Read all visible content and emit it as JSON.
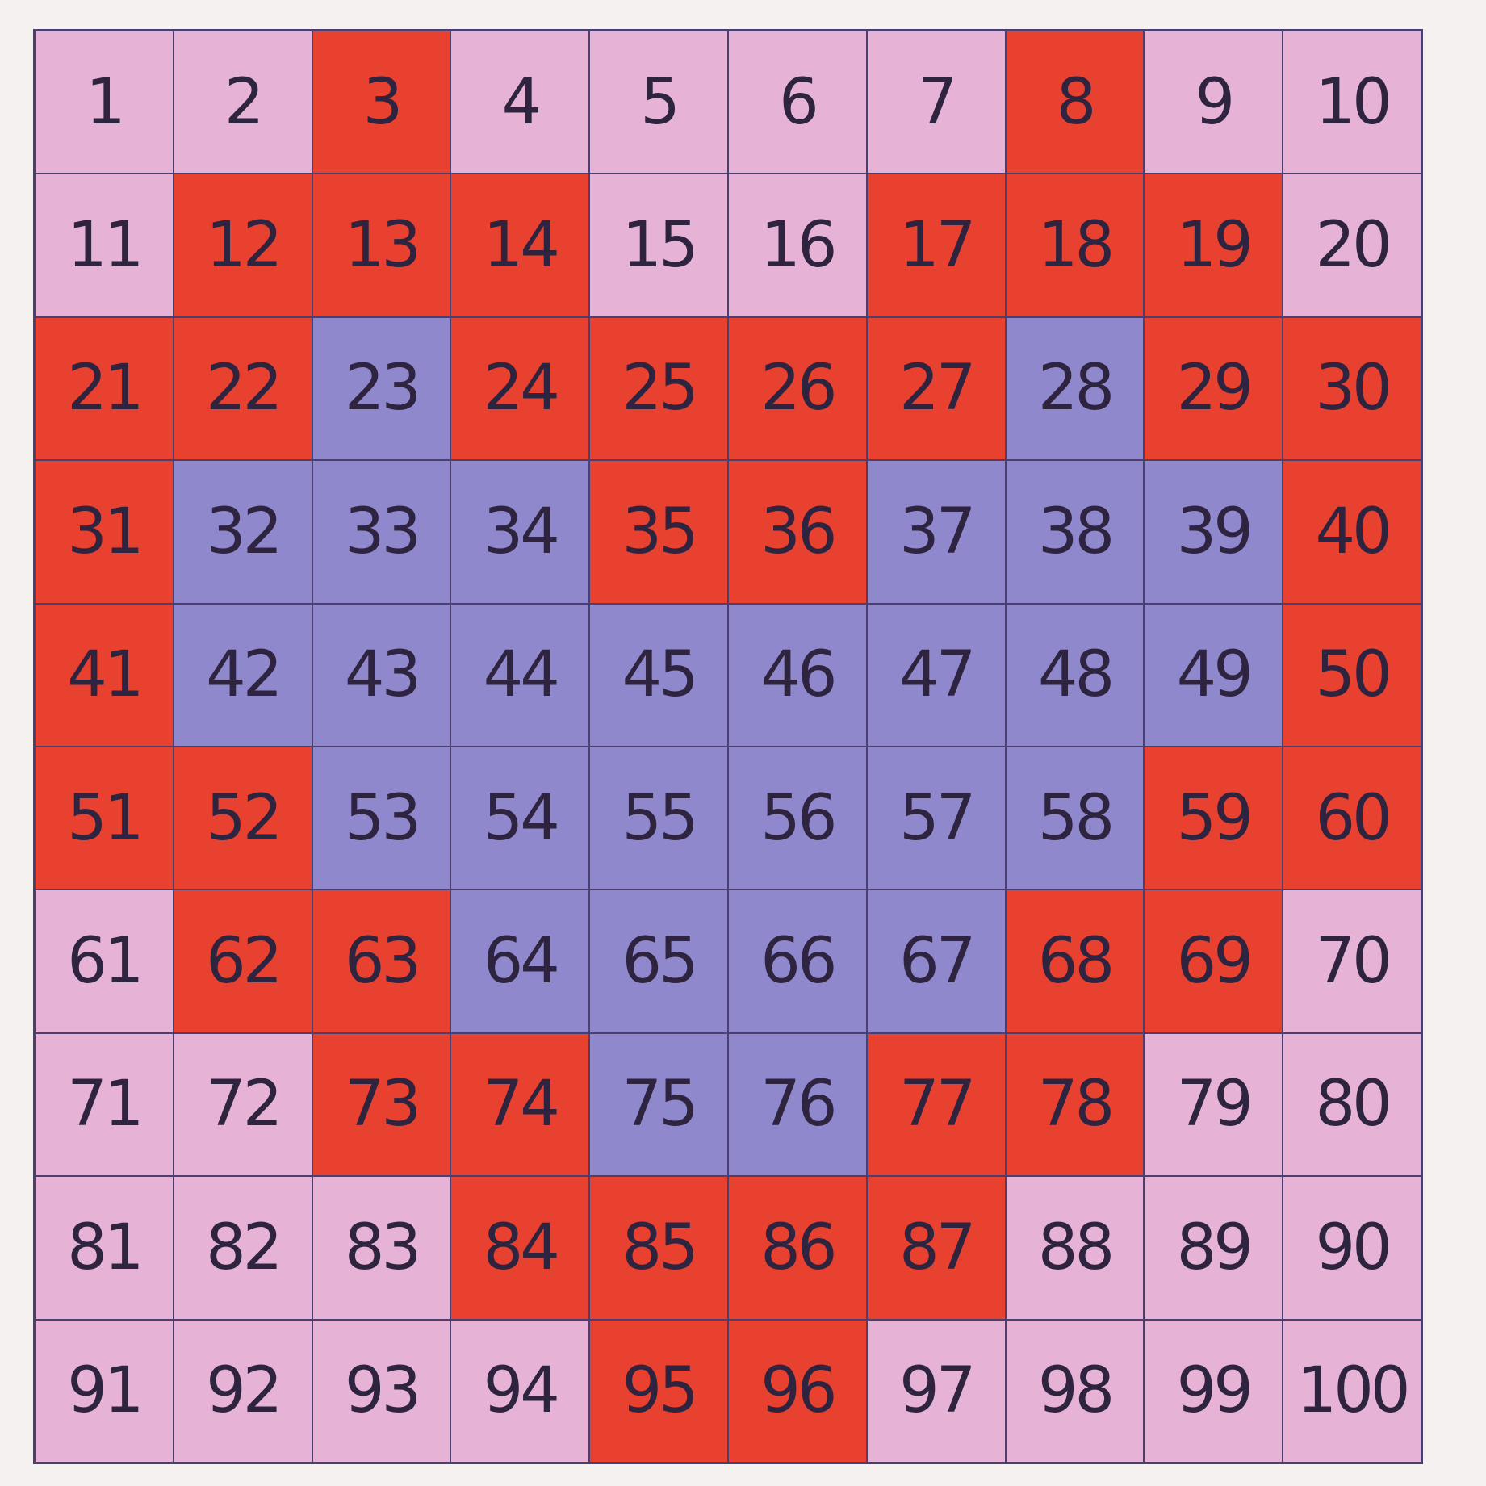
{
  "colors": {
    "P": "#e6b2d6",
    "R": "#e8412f",
    "B": "#8f88cc"
  },
  "cells": [
    [
      "1",
      "P"
    ],
    [
      "2",
      "P"
    ],
    [
      "3",
      "R"
    ],
    [
      "4",
      "P"
    ],
    [
      "5",
      "P"
    ],
    [
      "6",
      "P"
    ],
    [
      "7",
      "P"
    ],
    [
      "8",
      "R"
    ],
    [
      "9",
      "P"
    ],
    [
      "10",
      "P"
    ],
    [
      "11",
      "P"
    ],
    [
      "12",
      "R"
    ],
    [
      "13",
      "R"
    ],
    [
      "14",
      "R"
    ],
    [
      "15",
      "P"
    ],
    [
      "16",
      "P"
    ],
    [
      "17",
      "R"
    ],
    [
      "18",
      "R"
    ],
    [
      "19",
      "R"
    ],
    [
      "20",
      "P"
    ],
    [
      "21",
      "R"
    ],
    [
      "22",
      "R"
    ],
    [
      "23",
      "B"
    ],
    [
      "24",
      "R"
    ],
    [
      "25",
      "R"
    ],
    [
      "26",
      "R"
    ],
    [
      "27",
      "R"
    ],
    [
      "28",
      "B"
    ],
    [
      "29",
      "R"
    ],
    [
      "30",
      "R"
    ],
    [
      "31",
      "R"
    ],
    [
      "32",
      "B"
    ],
    [
      "33",
      "B"
    ],
    [
      "34",
      "B"
    ],
    [
      "35",
      "R"
    ],
    [
      "36",
      "R"
    ],
    [
      "37",
      "B"
    ],
    [
      "38",
      "B"
    ],
    [
      "39",
      "B"
    ],
    [
      "40",
      "R"
    ],
    [
      "41",
      "R"
    ],
    [
      "42",
      "B"
    ],
    [
      "43",
      "B"
    ],
    [
      "44",
      "B"
    ],
    [
      "45",
      "B"
    ],
    [
      "46",
      "B"
    ],
    [
      "47",
      "B"
    ],
    [
      "48",
      "B"
    ],
    [
      "49",
      "B"
    ],
    [
      "50",
      "R"
    ],
    [
      "51",
      "R"
    ],
    [
      "52",
      "R"
    ],
    [
      "53",
      "B"
    ],
    [
      "54",
      "B"
    ],
    [
      "55",
      "B"
    ],
    [
      "56",
      "B"
    ],
    [
      "57",
      "B"
    ],
    [
      "58",
      "B"
    ],
    [
      "59",
      "R"
    ],
    [
      "60",
      "R"
    ],
    [
      "61",
      "P"
    ],
    [
      "62",
      "R"
    ],
    [
      "63",
      "R"
    ],
    [
      "64",
      "B"
    ],
    [
      "65",
      "B"
    ],
    [
      "66",
      "B"
    ],
    [
      "67",
      "B"
    ],
    [
      "68",
      "R"
    ],
    [
      "69",
      "R"
    ],
    [
      "70",
      "P"
    ],
    [
      "71",
      "P"
    ],
    [
      "72",
      "P"
    ],
    [
      "73",
      "R"
    ],
    [
      "74",
      "R"
    ],
    [
      "75",
      "B"
    ],
    [
      "76",
      "B"
    ],
    [
      "77",
      "R"
    ],
    [
      "78",
      "R"
    ],
    [
      "79",
      "P"
    ],
    [
      "80",
      "P"
    ],
    [
      "81",
      "P"
    ],
    [
      "82",
      "P"
    ],
    [
      "83",
      "P"
    ],
    [
      "84",
      "R"
    ],
    [
      "85",
      "R"
    ],
    [
      "86",
      "R"
    ],
    [
      "87",
      "R"
    ],
    [
      "88",
      "P"
    ],
    [
      "89",
      "P"
    ],
    [
      "90",
      "P"
    ],
    [
      "91",
      "P"
    ],
    [
      "92",
      "P"
    ],
    [
      "93",
      "P"
    ],
    [
      "94",
      "P"
    ],
    [
      "95",
      "R"
    ],
    [
      "96",
      "R"
    ],
    [
      "97",
      "P"
    ],
    [
      "98",
      "P"
    ],
    [
      "99",
      "P"
    ],
    [
      "100",
      "P"
    ]
  ]
}
